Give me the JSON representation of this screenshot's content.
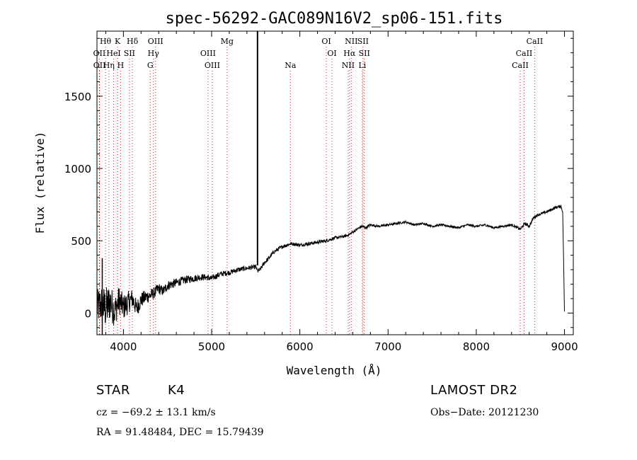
{
  "chart_data": {
    "type": "line",
    "title": "spec-56292-GAC089N16V2_sp06-151.fits",
    "xlabel": "Wavelength (Å)",
    "ylabel": "Flux (relative)",
    "xlim": [
      3700,
      9100
    ],
    "ylim": [
      -150,
      1950
    ],
    "xticks": [
      4000,
      5000,
      6000,
      7000,
      8000,
      9000
    ],
    "yticks": [
      0,
      500,
      1000,
      1500
    ],
    "xtick_labels": [
      "4000",
      "5000",
      "6000",
      "7000",
      "8000",
      "9000"
    ],
    "ytick_labels": [
      "0",
      "500",
      "1000",
      "1500"
    ],
    "grid": false,
    "series": [
      {
        "x": [
          3700,
          3750,
          3800,
          3850,
          3900,
          3950,
          4000,
          4050,
          4100,
          4150,
          4200,
          4250,
          4300,
          4350,
          4400,
          4450,
          4500,
          4600,
          4700,
          4800,
          4900,
          5000,
          5100,
          5200,
          5300,
          5400,
          5500,
          5520,
          5550,
          5600,
          5650,
          5700,
          5750,
          5800,
          5850,
          5900,
          6000,
          6100,
          6200,
          6300,
          6400,
          6500,
          6550,
          6600,
          6650,
          6700,
          6750,
          6800,
          6900,
          7000,
          7100,
          7200,
          7300,
          7400,
          7500,
          7600,
          7700,
          7800,
          7900,
          8000,
          8100,
          8200,
          8300,
          8400,
          8500,
          8550,
          8600,
          8650,
          8700,
          8800,
          8900,
          8960,
          8980,
          9000
        ],
        "y": [
          40,
          60,
          30,
          80,
          10,
          90,
          40,
          70,
          100,
          30,
          90,
          110,
          120,
          140,
          170,
          150,
          190,
          210,
          230,
          240,
          250,
          240,
          270,
          280,
          300,
          310,
          320,
          290,
          300,
          350,
          380,
          420,
          440,
          460,
          470,
          480,
          470,
          480,
          490,
          500,
          520,
          530,
          540,
          560,
          580,
          600,
          590,
          610,
          600,
          610,
          620,
          630,
          610,
          620,
          600,
          610,
          600,
          590,
          610,
          600,
          610,
          590,
          600,
          610,
          580,
          620,
          600,
          660,
          680,
          700,
          730,
          740,
          700,
          10
        ]
      }
    ],
    "noise_amplitude": [
      120,
      140,
      150,
      130,
      110,
      100,
      90,
      80,
      70,
      60,
      55,
      50,
      45,
      40,
      40,
      35,
      35,
      30,
      28,
      25,
      22,
      20,
      20,
      18,
      18,
      16,
      15,
      15,
      15,
      15,
      15,
      14,
      14,
      14,
      13,
      12,
      12,
      12,
      12,
      11,
      11,
      10,
      10,
      10,
      10,
      10,
      10,
      9,
      9,
      8,
      8,
      8,
      8,
      8,
      8,
      8,
      8,
      8,
      8,
      8,
      8,
      8,
      8,
      8,
      10,
      12,
      12,
      12,
      10,
      10,
      10,
      10,
      10,
      10
    ],
    "spike": {
      "x": 5520,
      "y_top": 1950,
      "y_bottom": 330
    },
    "left_spike": {
      "x": 3760,
      "y_top": 380,
      "y_bottom": -150
    },
    "line_markers": [
      {
        "x": 3797,
        "row": 0,
        "label": "Hθ"
      },
      {
        "x": 3934,
        "row": 0,
        "label": "K"
      },
      {
        "x": 4102,
        "row": 0,
        "label": "Hδ"
      },
      {
        "x": 4364,
        "row": 0,
        "label": "OIII"
      },
      {
        "x": 5175,
        "row": 0,
        "label": "Mg"
      },
      {
        "x": 6300,
        "row": 0,
        "label": "OI"
      },
      {
        "x": 6583,
        "row": 0,
        "label": "NII"
      },
      {
        "x": 6716,
        "row": 0,
        "label": "SII"
      },
      {
        "x": 8662,
        "row": 0,
        "label": "CaII"
      },
      {
        "x": 3727,
        "row": 1,
        "label": "OII"
      },
      {
        "x": 3889,
        "row": 1,
        "label": "HeI"
      },
      {
        "x": 4068,
        "row": 1,
        "label": "SII"
      },
      {
        "x": 4340,
        "row": 1,
        "label": "Hγ"
      },
      {
        "x": 4959,
        "row": 1,
        "label": "OIII"
      },
      {
        "x": 6364,
        "row": 1,
        "label": "OI"
      },
      {
        "x": 6563,
        "row": 1,
        "label": "Hα"
      },
      {
        "x": 6731,
        "row": 1,
        "label": "SII"
      },
      {
        "x": 8542,
        "row": 1,
        "label": "CaII"
      },
      {
        "x": 3729,
        "row": 2,
        "label": "OII"
      },
      {
        "x": 3835,
        "row": 2,
        "label": "Hη"
      },
      {
        "x": 3968,
        "row": 2,
        "label": "H"
      },
      {
        "x": 4304,
        "row": 2,
        "label": "G"
      },
      {
        "x": 5007,
        "row": 2,
        "label": "OIII"
      },
      {
        "x": 5893,
        "row": 2,
        "label": "Na"
      },
      {
        "x": 6548,
        "row": 2,
        "label": "NII"
      },
      {
        "x": 6708,
        "row": 2,
        "label": "Li"
      },
      {
        "x": 8498,
        "row": 2,
        "label": "CaII"
      }
    ]
  },
  "info": {
    "class": "STAR",
    "subclass": "K4",
    "survey": "LAMOST DR2",
    "cz": "cz = −69.2 ± 13.1 km/s",
    "obs_date": "Obs−Date: 20121230",
    "radec": "RA =  91.48484, DEC =  15.79439"
  }
}
